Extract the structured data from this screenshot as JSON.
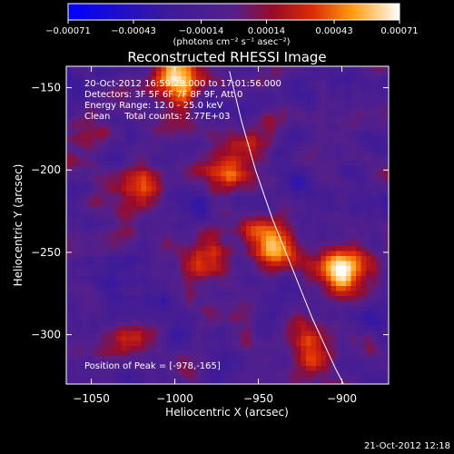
{
  "chart_data": {
    "type": "heatmap",
    "title": "Reconstructed RHESSI Image",
    "xlabel": "Heliocentric X (arcsec)",
    "ylabel": "Heliocentric Y (arcsec)",
    "xlim": [
      -1065,
      -872
    ],
    "ylim": [
      -330,
      -137
    ],
    "x_ticks": [
      {
        "value": -1050,
        "label": "−1050"
      },
      {
        "value": -1000,
        "label": "−1000"
      },
      {
        "value": -950,
        "label": "−950"
      },
      {
        "value": -900,
        "label": "−900"
      }
    ],
    "y_ticks": [
      {
        "value": -150,
        "label": "−150"
      },
      {
        "value": -200,
        "label": "−200"
      },
      {
        "value": -250,
        "label": "−250"
      },
      {
        "value": -300,
        "label": "−300"
      }
    ],
    "colorbar": {
      "min": -0.00071,
      "max": 0.00071,
      "ticks": [
        {
          "value": -0.00071,
          "label": "−0.00071"
        },
        {
          "value": -0.00043,
          "label": "−0.00043"
        },
        {
          "value": -0.00014,
          "label": "−0.00014"
        },
        {
          "value": 0.00014,
          "label": "0.00014"
        },
        {
          "value": 0.00043,
          "label": "0.00043"
        },
        {
          "value": 0.00071,
          "label": "0.00071"
        }
      ],
      "unit_label": "(photons cm⁻² s⁻¹ asec⁻²)"
    },
    "info_lines": [
      "20-Oct-2012 16:59:28.000 to 17:01:56.000",
      "Detectors: 3F 5F 6F 7F 8F 9F, Att 0",
      "Energy Range: 12.0 - 25.0 keV",
      "Clean     Total counts: 2.77E+03"
    ],
    "peak_label": "Position of Peak = [-978,-165]",
    "limb_curve": [
      {
        "x": -967.3,
        "y": -140
      },
      {
        "x": -960.2,
        "y": -170
      },
      {
        "x": -951.7,
        "y": -200
      },
      {
        "x": -941.5,
        "y": -230
      },
      {
        "x": -929.6,
        "y": -260
      },
      {
        "x": -917.7,
        "y": -290
      },
      {
        "x": -904.1,
        "y": -320
      },
      {
        "x": -899.0,
        "y": -330
      }
    ],
    "bright_sources": [
      {
        "x": -1000,
        "y": -145,
        "value": 0.00071
      },
      {
        "x": -1020,
        "y": -215,
        "value": 0.0006
      },
      {
        "x": -945,
        "y": -245,
        "value": 0.0006
      },
      {
        "x": -900,
        "y": -260,
        "value": 0.00068
      },
      {
        "x": -965,
        "y": -200,
        "value": 0.00045
      },
      {
        "x": -1050,
        "y": -175,
        "value": 0.00035
      },
      {
        "x": -1025,
        "y": -300,
        "value": 0.0004
      },
      {
        "x": -985,
        "y": -260,
        "value": 0.00045
      },
      {
        "x": -920,
        "y": -310,
        "value": 0.00045
      }
    ]
  },
  "footer": {
    "timestamp": "21-Oct-2012 12:18"
  }
}
